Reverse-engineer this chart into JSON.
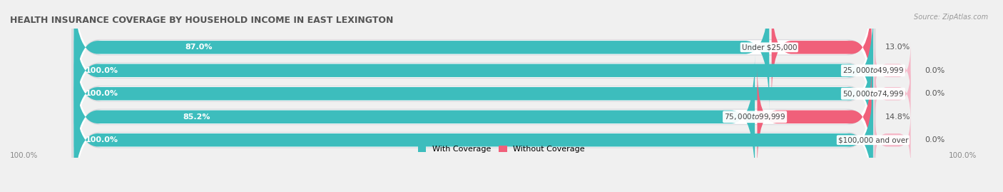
{
  "title": "HEALTH INSURANCE COVERAGE BY HOUSEHOLD INCOME IN EAST LEXINGTON",
  "source": "Source: ZipAtlas.com",
  "categories": [
    "Under $25,000",
    "$25,000 to $49,999",
    "$50,000 to $74,999",
    "$75,000 to $99,999",
    "$100,000 and over"
  ],
  "with_coverage": [
    87.0,
    100.0,
    100.0,
    85.2,
    100.0
  ],
  "without_coverage": [
    13.0,
    0.0,
    0.0,
    14.8,
    0.0
  ],
  "color_with": "#3DBDBD",
  "color_without": "#F0607A",
  "color_without_light": "#F5B8C8",
  "bg_color": "#F0F0F0",
  "bar_bg": "#E8E8EC",
  "bar_inner_bg": "#FFFFFF",
  "title_fontsize": 9,
  "source_fontsize": 7,
  "label_fontsize": 8,
  "category_fontsize": 7.5,
  "legend_fontsize": 8,
  "bar_height": 0.62,
  "total_bar_width": 100
}
